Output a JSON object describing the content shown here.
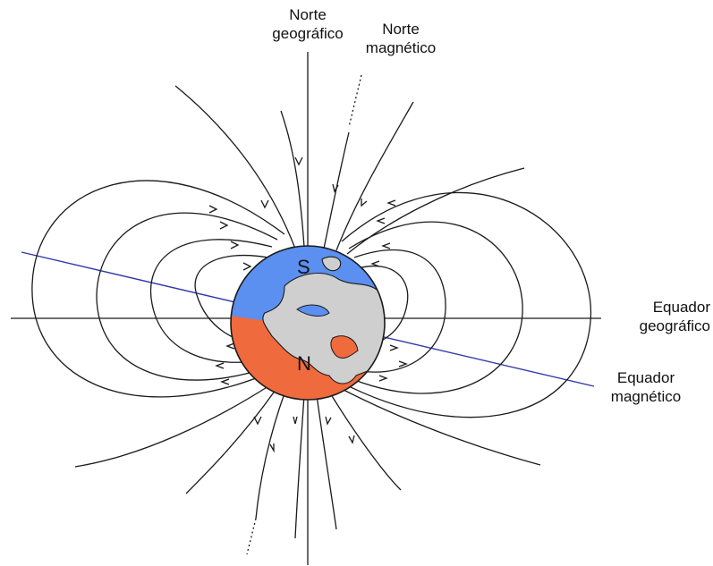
{
  "labels": {
    "geo_north": {
      "line1": "Norte",
      "line2": "geográfico"
    },
    "mag_north": {
      "line1": "Norte",
      "line2": "magnético"
    },
    "geo_equator": {
      "line1": "Equador",
      "line2": "geográfico"
    },
    "mag_equator": {
      "line1": "Equador",
      "line2": "magnético"
    }
  },
  "earth": {
    "top_pole_letter": "S",
    "bottom_pole_letter": "N"
  },
  "colors": {
    "top_hemisphere": "#5b8ff0",
    "bottom_hemisphere": "#ef6a3d",
    "land": "#cfcfcf",
    "magnetic_equator_line": "#2d3aa8",
    "field_lines": "#1a1a1a"
  }
}
